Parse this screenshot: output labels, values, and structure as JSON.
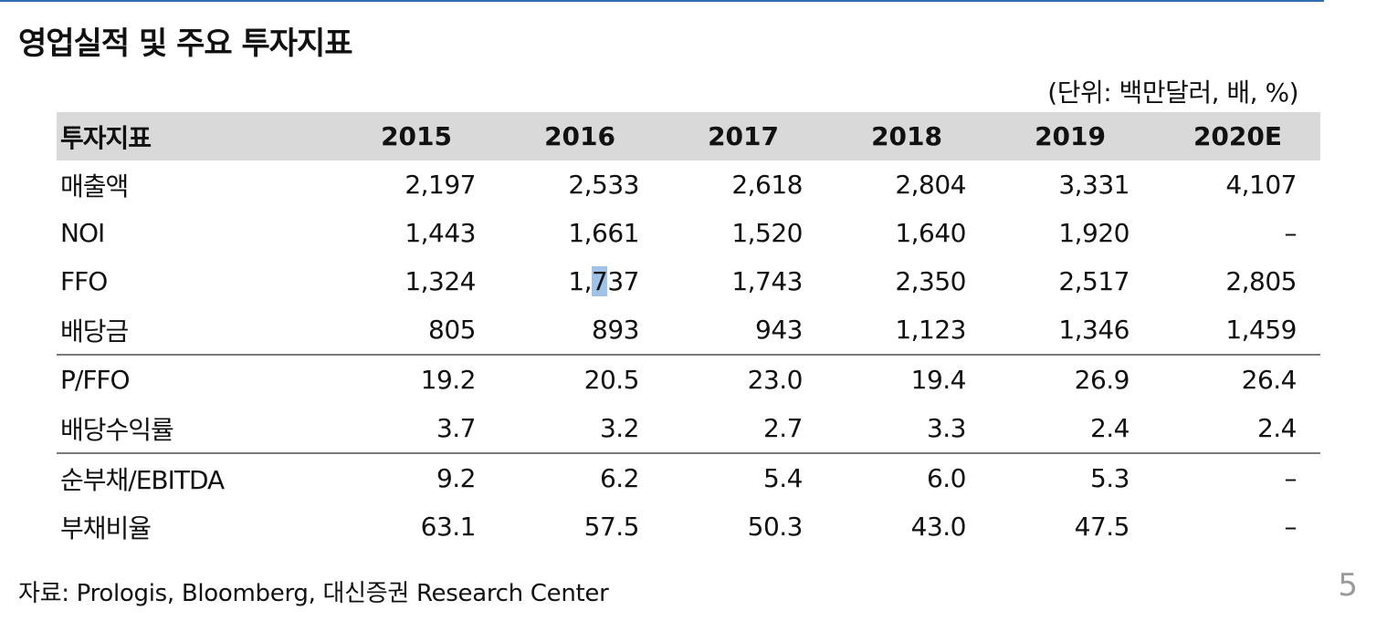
{
  "title": "영업실적 및 주요 투자지표",
  "unit": "(단위: 백만달러, 배, %)",
  "table": {
    "headers": [
      "투자지표",
      "2015",
      "2016",
      "2017",
      "2018",
      "2019",
      "2020E"
    ],
    "rows": [
      {
        "label": "매출액",
        "values": [
          "2,197",
          "2,533",
          "2,618",
          "2,804",
          "3,331",
          "4,107"
        ]
      },
      {
        "label": "NOI",
        "values": [
          "1,443",
          "1,661",
          "1,520",
          "1,640",
          "1,920",
          "–"
        ]
      },
      {
        "label": "FFO",
        "values": [
          "1,324",
          "1,737",
          "1,743",
          "2,350",
          "2,517",
          "2,805"
        ]
      },
      {
        "label": "배당금",
        "values": [
          "805",
          "893",
          "943",
          "1,123",
          "1,346",
          "1,459"
        ]
      },
      {
        "label": "P/FFO",
        "values": [
          "19.2",
          "20.5",
          "23.0",
          "19.4",
          "26.9",
          "26.4"
        ]
      },
      {
        "label": "배당수익률",
        "values": [
          "3.7",
          "3.2",
          "2.7",
          "3.3",
          "2.4",
          "2.4"
        ]
      },
      {
        "label": "순부채/EBITDA",
        "values": [
          "9.2",
          "6.2",
          "5.4",
          "6.0",
          "5.3",
          "–"
        ]
      },
      {
        "label": "부채비율",
        "values": [
          "63.1",
          "57.5",
          "50.3",
          "43.0",
          "47.5",
          "–"
        ]
      }
    ],
    "selection_highlight": "#9ec3e6"
  },
  "source": "자료: Prologis, Bloomberg, 대신증권 Research Center",
  "page_number": "5",
  "colors": {
    "accent_rule": "#2f6fb0",
    "header_bg": "#d9d9d9",
    "page_number": "#9a9a9a"
  }
}
